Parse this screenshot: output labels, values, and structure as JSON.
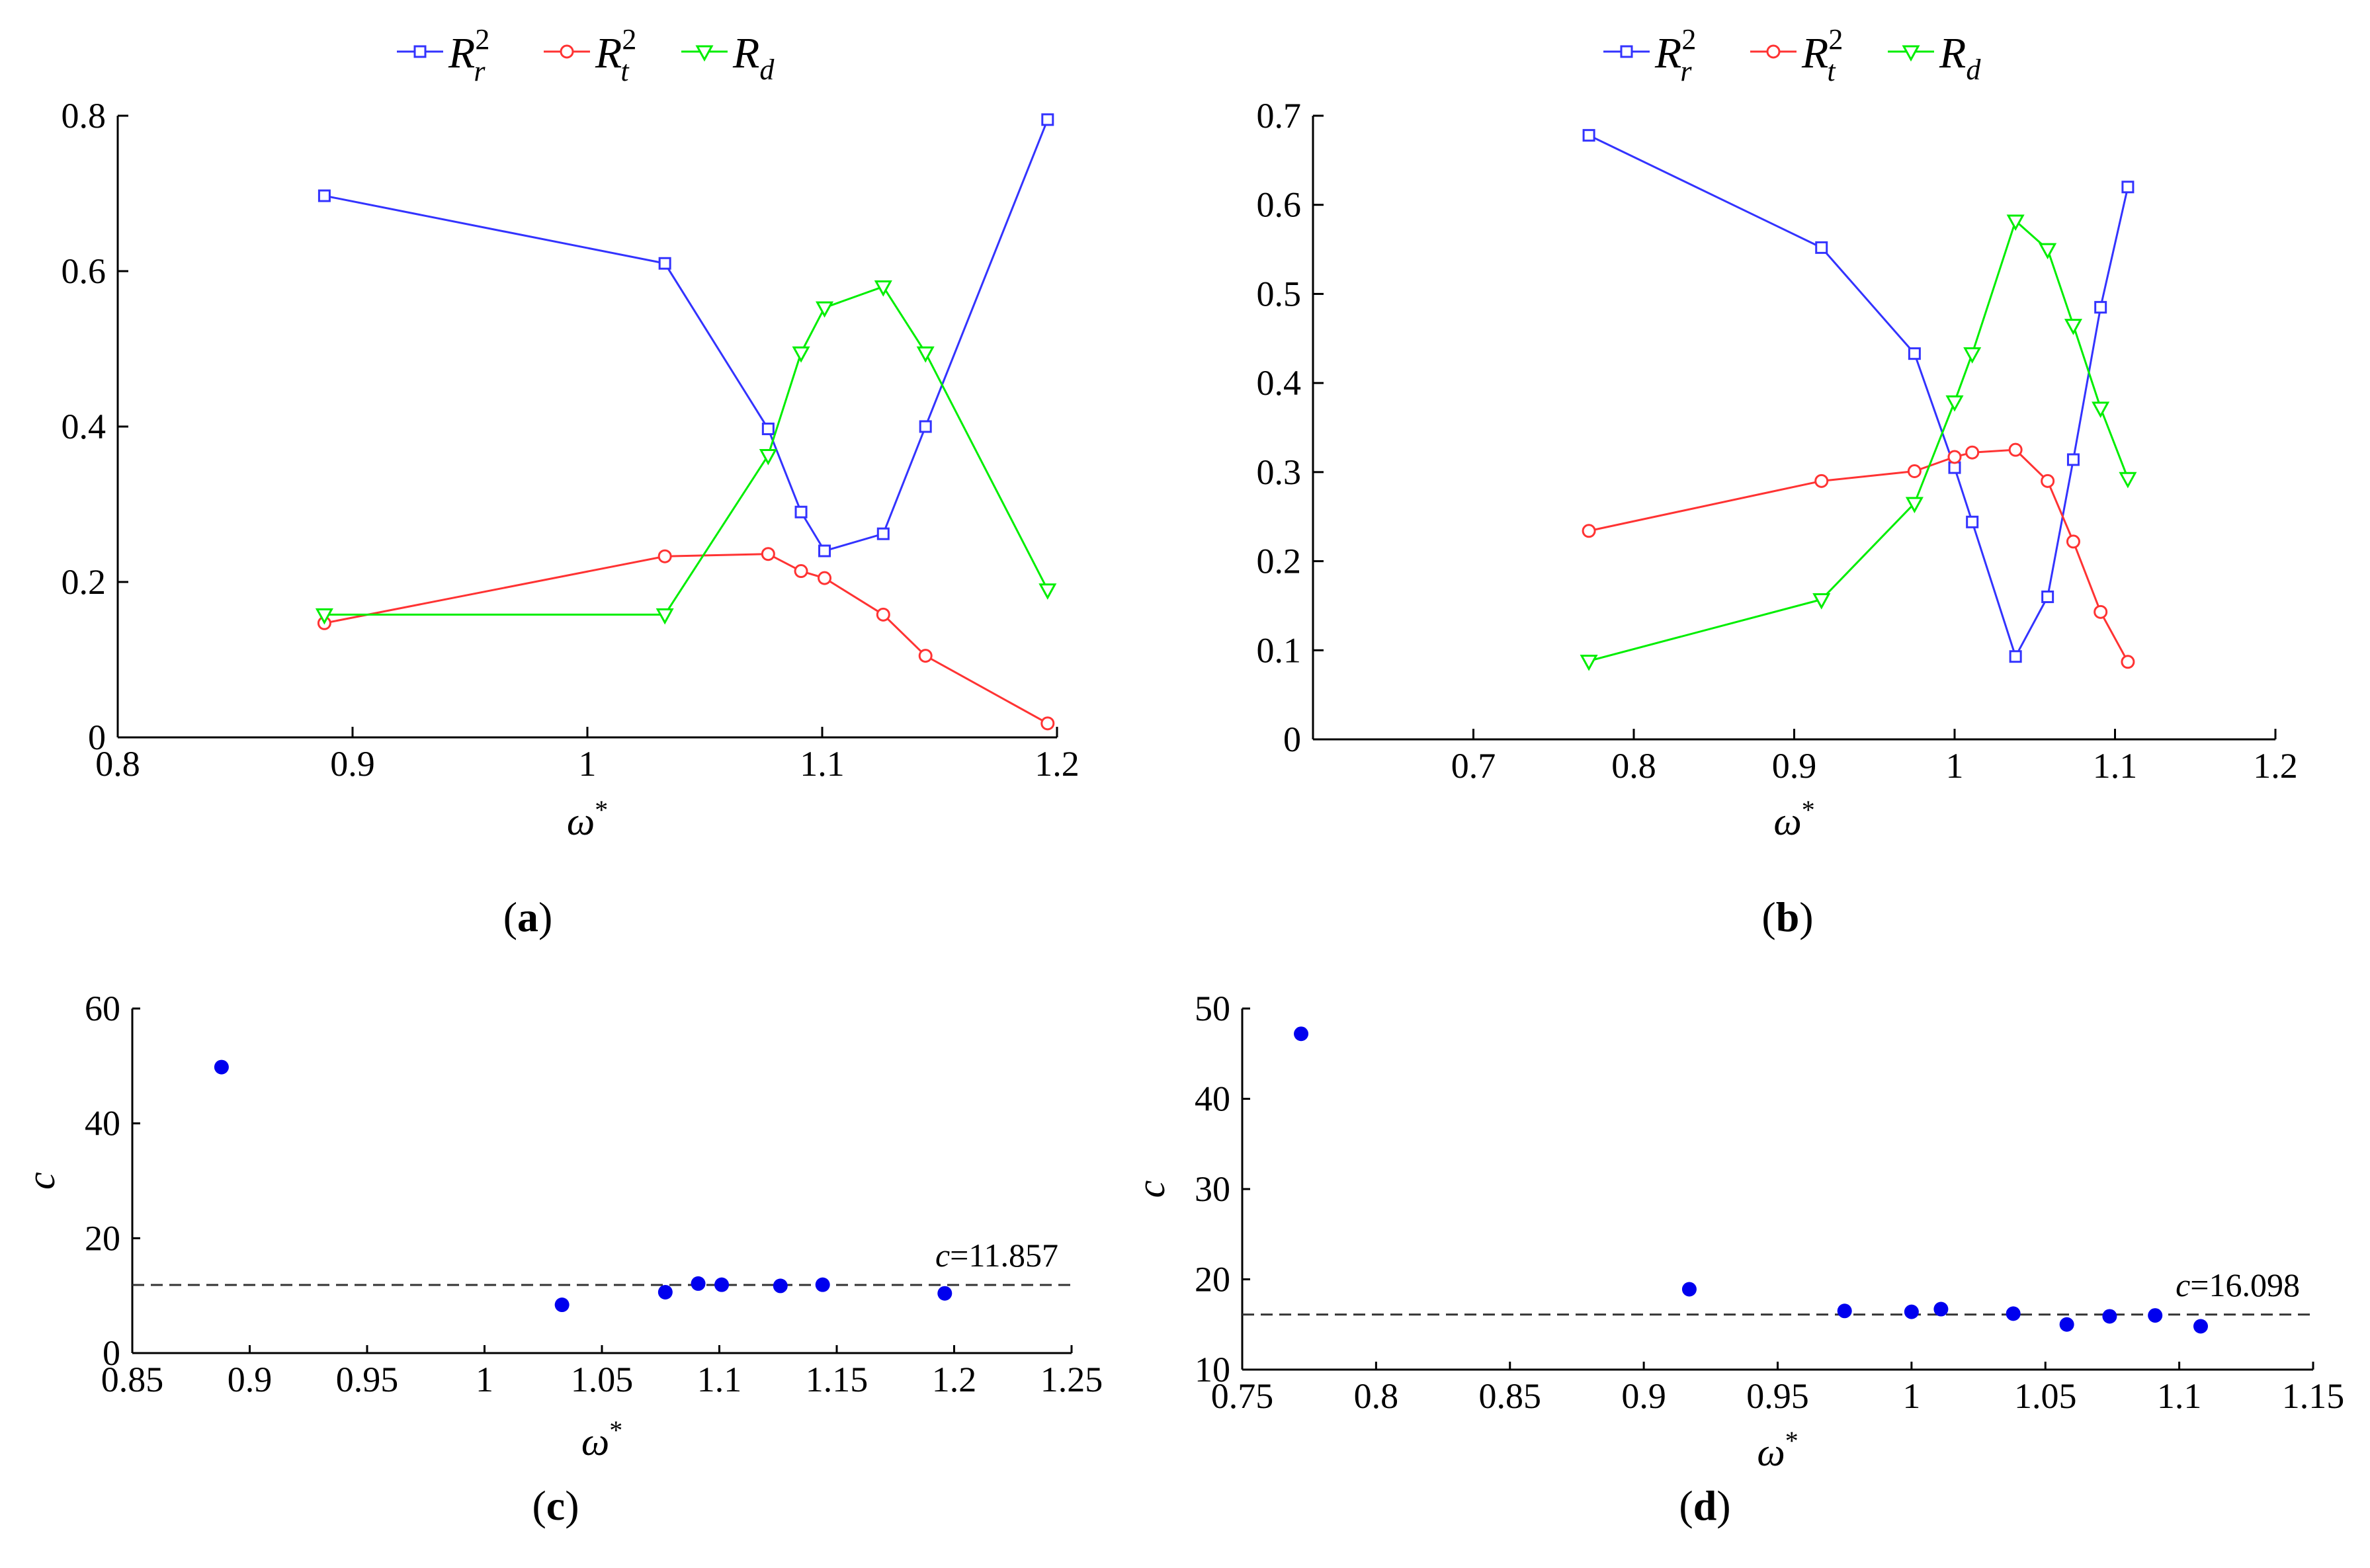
{
  "chart_data": [
    {
      "id": "a",
      "type": "line",
      "panel_label": "a",
      "xlabel": "ω*",
      "ylabel": "",
      "xlim": [
        0.8,
        1.2
      ],
      "ylim": [
        0,
        0.8
      ],
      "xticks": [
        0.8,
        0.9,
        1,
        1.1,
        1.2
      ],
      "xtick_labels": [
        "0.8",
        "0.9",
        "1",
        "1.1",
        "1.2"
      ],
      "yticks": [
        0,
        0.2,
        0.4,
        0.6,
        0.8
      ],
      "ytick_labels": [
        "0",
        "0.2",
        "0.4",
        "0.6",
        "0.8"
      ],
      "legend": {
        "position": "top-center",
        "entries": [
          {
            "base": "R",
            "sub": "r",
            "sup": "2"
          },
          {
            "base": "R",
            "sub": "t",
            "sup": "2"
          },
          {
            "base": "R",
            "sub": "d",
            "sup": ""
          }
        ]
      },
      "x": [
        0.888,
        1.033,
        1.077,
        1.091,
        1.101,
        1.126,
        1.144,
        1.196
      ],
      "series": [
        {
          "name": "Rr2",
          "color": "#3333ff",
          "marker": "square",
          "values": [
            0.697,
            0.61,
            0.397,
            0.29,
            0.24,
            0.262,
            0.4,
            0.795
          ]
        },
        {
          "name": "Rt2",
          "color": "#ff3333",
          "marker": "circle",
          "values": [
            0.147,
            0.233,
            0.236,
            0.214,
            0.205,
            0.158,
            0.105,
            0.018
          ]
        },
        {
          "name": "Rd",
          "color": "#00ee00",
          "marker": "triangle-down",
          "values": [
            0.158,
            0.158,
            0.363,
            0.495,
            0.553,
            0.58,
            0.495,
            0.19
          ]
        }
      ]
    },
    {
      "id": "b",
      "type": "line",
      "panel_label": "b",
      "xlabel": "ω*",
      "ylabel": "",
      "xlim": [
        0.6,
        1.2
      ],
      "ylim": [
        0,
        0.7
      ],
      "xticks": [
        0.7,
        0.8,
        0.9,
        1,
        1.1,
        1.2
      ],
      "xtick_labels": [
        "0.7",
        "0.8",
        "0.9",
        "1",
        "1.1",
        "1.2"
      ],
      "yticks": [
        0,
        0.1,
        0.2,
        0.3,
        0.4,
        0.5,
        0.6,
        0.7
      ],
      "ytick_labels": [
        "0",
        "0.1",
        "0.2",
        "0.3",
        "0.4",
        "0.5",
        "0.6",
        "0.7"
      ],
      "legend": {
        "position": "top-center",
        "entries": [
          {
            "base": "R",
            "sub": "r",
            "sup": "2"
          },
          {
            "base": "R",
            "sub": "t",
            "sup": "2"
          },
          {
            "base": "R",
            "sub": "d",
            "sup": ""
          }
        ]
      },
      "x": [
        0.772,
        0.917,
        0.975,
        1.0,
        1.011,
        1.038,
        1.058,
        1.074,
        1.091,
        1.108
      ],
      "series": [
        {
          "name": "Rr2",
          "color": "#3333ff",
          "marker": "square",
          "values": [
            0.678,
            0.552,
            0.433,
            0.305,
            0.244,
            0.093,
            0.16,
            0.314,
            0.485,
            0.62
          ]
        },
        {
          "name": "Rt2",
          "color": "#ff3333",
          "marker": "circle",
          "values": [
            0.234,
            0.29,
            0.301,
            0.317,
            0.322,
            0.325,
            0.29,
            0.222,
            0.143,
            0.087
          ]
        },
        {
          "name": "Rd",
          "color": "#00ee00",
          "marker": "triangle-down",
          "values": [
            0.088,
            0.157,
            0.265,
            0.379,
            0.433,
            0.582,
            0.55,
            0.465,
            0.372,
            0.293
          ]
        }
      ]
    },
    {
      "id": "c",
      "type": "scatter",
      "panel_label": "c",
      "xlabel": "ω*",
      "ylabel": "c",
      "xlim": [
        0.85,
        1.25
      ],
      "ylim": [
        0,
        60
      ],
      "xticks": [
        0.85,
        0.9,
        0.95,
        1,
        1.05,
        1.1,
        1.15,
        1.2,
        1.25
      ],
      "xtick_labels": [
        "0.85",
        "0.9",
        "0.95",
        "1",
        "1.05",
        "1.1",
        "1.15",
        "1.2",
        "1.25"
      ],
      "yticks": [
        0,
        20,
        40,
        60
      ],
      "ytick_labels": [
        "0",
        "20",
        "40",
        "60"
      ],
      "x": [
        0.888,
        1.033,
        1.077,
        1.091,
        1.101,
        1.126,
        1.144,
        1.196
      ],
      "series": [
        {
          "name": "c",
          "color": "#0000ee",
          "marker": "dot",
          "values": [
            49.8,
            8.4,
            10.6,
            12.1,
            11.9,
            11.7,
            11.9,
            10.4
          ]
        }
      ],
      "reference_line": {
        "y": 11.857,
        "style": "dashed",
        "label_var": "c",
        "label_value": "=11.857"
      }
    },
    {
      "id": "d",
      "type": "scatter",
      "panel_label": "d",
      "xlabel": "ω*",
      "ylabel": "c",
      "xlim": [
        0.75,
        1.15
      ],
      "ylim": [
        10,
        50
      ],
      "xticks": [
        0.75,
        0.8,
        0.85,
        0.9,
        0.95,
        1,
        1.05,
        1.1,
        1.15
      ],
      "xtick_labels": [
        "0.75",
        "0.8",
        "0.85",
        "0.9",
        "0.95",
        "1",
        "1.05",
        "1.1",
        "1.15"
      ],
      "yticks": [
        10,
        20,
        30,
        40,
        50
      ],
      "ytick_labels": [
        "10",
        "20",
        "30",
        "40",
        "50"
      ],
      "x": [
        0.772,
        0.917,
        0.975,
        1.0,
        1.011,
        1.038,
        1.058,
        1.074,
        1.091,
        1.108
      ],
      "series": [
        {
          "name": "c",
          "color": "#0000ee",
          "marker": "dot",
          "values": [
            47.2,
            18.9,
            16.5,
            16.4,
            16.7,
            16.2,
            15.0,
            15.9,
            16.0,
            14.8
          ]
        }
      ],
      "reference_line": {
        "y": 16.098,
        "style": "dashed",
        "label_var": "c",
        "label_value": "=16.098"
      }
    }
  ]
}
